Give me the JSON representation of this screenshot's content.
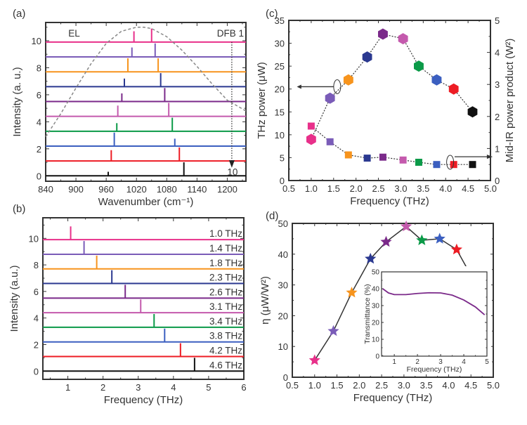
{
  "palette": {
    "magenta": "#e8308a",
    "violet": "#7a5cb8",
    "orange": "#f7941d",
    "navy": "#2b3990",
    "purple": "#7b2a8a",
    "pink": "#c45aad",
    "green": "#0b9a48",
    "blue": "#3b5fc0",
    "red": "#ed1c24",
    "black": "#111111",
    "axis": "#333333",
    "dashed": "#888888"
  },
  "chart_data": [
    {
      "panel": "(a)",
      "type": "line",
      "xlabel": "Wavenumber (cm⁻¹)",
      "ylabel": "Intensity (a. u.)",
      "xlim": [
        840,
        1237
      ],
      "ylim": [
        -0.4,
        11.35
      ],
      "xticks": [
        840,
        900,
        960,
        1020,
        1080,
        1140,
        1200
      ],
      "yticks": [
        0,
        2,
        4,
        6,
        8,
        10
      ],
      "annotations": {
        "el": "EL",
        "dfb": "DFB 1",
        "dfb_end": "10"
      },
      "dfb_marker_x": 1209,
      "el_curve": {
        "x": [
          840,
          870,
          900,
          930,
          960,
          990,
          1020,
          1035,
          1050,
          1080,
          1110,
          1140,
          1170,
          1200,
          1237
        ],
        "y": [
          2.9,
          4.6,
          6.5,
          8.3,
          9.8,
          10.7,
          11.0,
          11.0,
          10.9,
          10.3,
          9.3,
          8.1,
          6.8,
          5.6,
          4.8
        ]
      },
      "traces": [
        {
          "color": "black",
          "offset": 0.0,
          "peaks": [
            [
              964,
              0.3
            ],
            [
              1114,
              1.0
            ]
          ]
        },
        {
          "color": "red",
          "offset": 1.1,
          "peaks": [
            [
              970,
              0.8
            ],
            [
              1105,
              1.0
            ]
          ]
        },
        {
          "color": "blue",
          "offset": 2.2,
          "peaks": [
            [
              976,
              1.0
            ],
            [
              1096,
              0.55
            ]
          ]
        },
        {
          "color": "green",
          "offset": 3.3,
          "peaks": [
            [
              981,
              0.6
            ],
            [
              1091,
              1.0
            ]
          ]
        },
        {
          "color": "pink",
          "offset": 4.4,
          "peaks": [
            [
              983,
              0.8
            ],
            [
              1084,
              1.0
            ]
          ]
        },
        {
          "color": "purple",
          "offset": 5.5,
          "peaks": [
            [
              991,
              0.6
            ],
            [
              1076,
              1.0
            ]
          ]
        },
        {
          "color": "navy",
          "offset": 6.6,
          "peaks": [
            [
              996,
              0.6
            ],
            [
              1068,
              1.0
            ]
          ]
        },
        {
          "color": "orange",
          "offset": 7.7,
          "peaks": [
            [
              1003,
              1.0
            ],
            [
              1063,
              1.0
            ]
          ]
        },
        {
          "color": "violet",
          "offset": 8.8,
          "peaks": [
            [
              1011,
              0.7
            ],
            [
              1057,
              1.0
            ]
          ]
        },
        {
          "color": "magenta",
          "offset": 9.9,
          "peaks": [
            [
              1015,
              0.8
            ],
            [
              1050,
              1.0
            ]
          ]
        }
      ]
    },
    {
      "panel": "(b)",
      "type": "line",
      "xlabel": "Frequency (THz)",
      "ylabel": "Intensity (a.u.)",
      "xlim": [
        0.29,
        6.0
      ],
      "ylim": [
        -0.62,
        11.55
      ],
      "xticks": [
        1,
        2,
        3,
        4,
        5,
        6
      ],
      "yticks": [
        0,
        2,
        4,
        6,
        8,
        10
      ],
      "traces": [
        {
          "label": "4.6 THz",
          "color": "black",
          "offset": 0.0,
          "peak": [
            4.6,
            1.0
          ]
        },
        {
          "label": "4.2 THz",
          "color": "red",
          "offset": 1.1,
          "peak": [
            4.2,
            1.0
          ]
        },
        {
          "label": "3.8 THz",
          "color": "blue",
          "offset": 2.2,
          "peak": [
            3.75,
            1.0
          ]
        },
        {
          "label": "3.4 THz",
          "color": "green",
          "offset": 3.3,
          "peak": [
            3.45,
            1.0
          ]
        },
        {
          "label": "3.1 THz",
          "color": "pink",
          "offset": 4.4,
          "peak": [
            3.07,
            1.0
          ]
        },
        {
          "label": "2.6 THz",
          "color": "purple",
          "offset": 5.5,
          "peak": [
            2.63,
            1.0
          ]
        },
        {
          "label": "2.3 THz",
          "color": "navy",
          "offset": 6.6,
          "peak": [
            2.25,
            1.0
          ]
        },
        {
          "label": "1.8 THz",
          "color": "orange",
          "offset": 7.7,
          "peak": [
            1.82,
            1.0
          ]
        },
        {
          "label": "1.4 THz",
          "color": "violet",
          "offset": 8.8,
          "peak": [
            1.46,
            1.0
          ]
        },
        {
          "label": "1.0 THz",
          "color": "magenta",
          "offset": 9.9,
          "peak": [
            1.08,
            1.0
          ]
        }
      ]
    },
    {
      "panel": "(c)",
      "type": "scatter",
      "xlabel": "Frequency (THz)",
      "ylabel": "THz power (μW)",
      "ylabel_right": "Mid-IR power product (W²)",
      "xlim": [
        0.5,
        5.0
      ],
      "ylim": [
        0,
        35
      ],
      "ylim_right": [
        0,
        5
      ],
      "xticks": [
        0.5,
        1.0,
        1.5,
        2.0,
        2.5,
        3.0,
        3.5,
        4.0,
        4.5,
        5.0
      ],
      "yticks": [
        0,
        5,
        10,
        15,
        20,
        25,
        30,
        35
      ],
      "yticks_right": [
        0,
        1,
        2,
        3,
        4,
        5
      ],
      "x": [
        1.0,
        1.42,
        1.83,
        2.25,
        2.6,
        3.05,
        3.4,
        3.8,
        4.18,
        4.6
      ],
      "colors": [
        "magenta",
        "violet",
        "orange",
        "navy",
        "purple",
        "pink",
        "green",
        "blue",
        "red",
        "black"
      ],
      "series": [
        {
          "marker": "hexagon",
          "axis": "left",
          "values": [
            9,
            18,
            22,
            27,
            32,
            31,
            25,
            22,
            20,
            15
          ]
        },
        {
          "marker": "square",
          "axis": "right",
          "values": [
            1.7,
            1.21,
            0.8,
            0.7,
            0.73,
            0.64,
            0.57,
            0.5,
            0.5,
            0.5
          ]
        }
      ]
    },
    {
      "panel": "(d)",
      "type": "line",
      "xlabel": "Frequency (THz)",
      "ylabel": "η (μW/W²)",
      "xlim": [
        0.5,
        5.0
      ],
      "ylim": [
        0,
        50
      ],
      "xticks": [
        0.5,
        1.0,
        1.5,
        2.0,
        2.5,
        3.0,
        3.5,
        4.0,
        4.5,
        5.0
      ],
      "yticks": [
        0,
        10,
        20,
        30,
        40,
        50
      ],
      "x": [
        1.0,
        1.42,
        1.83,
        2.25,
        2.6,
        3.05,
        3.4,
        3.8,
        4.18,
        4.6
      ],
      "colors": [
        "magenta",
        "violet",
        "orange",
        "navy",
        "purple",
        "pink",
        "green",
        "blue",
        "red",
        "black"
      ],
      "values": [
        5.5,
        15,
        27.5,
        38.5,
        44,
        49,
        44.5,
        45,
        41.5,
        30.5
      ],
      "marker": "star",
      "inset": {
        "type": "line",
        "xlabel": "Frequency (THz)",
        "ylabel": "Transmittance (%)",
        "xlim": [
          0.45,
          5.0
        ],
        "ylim": [
          0,
          50
        ],
        "xticks": [
          1,
          2,
          3,
          4,
          5
        ],
        "yticks": [
          0,
          10,
          20,
          30,
          40,
          50
        ],
        "color": "purple",
        "x": [
          0.5,
          0.75,
          1.0,
          1.5,
          2.0,
          2.5,
          3.0,
          3.5,
          4.0,
          4.5,
          4.9
        ],
        "y": [
          40,
          37.5,
          36.5,
          36.5,
          37.2,
          37.6,
          37.5,
          36.2,
          33.3,
          29.2,
          24.5
        ]
      }
    }
  ]
}
